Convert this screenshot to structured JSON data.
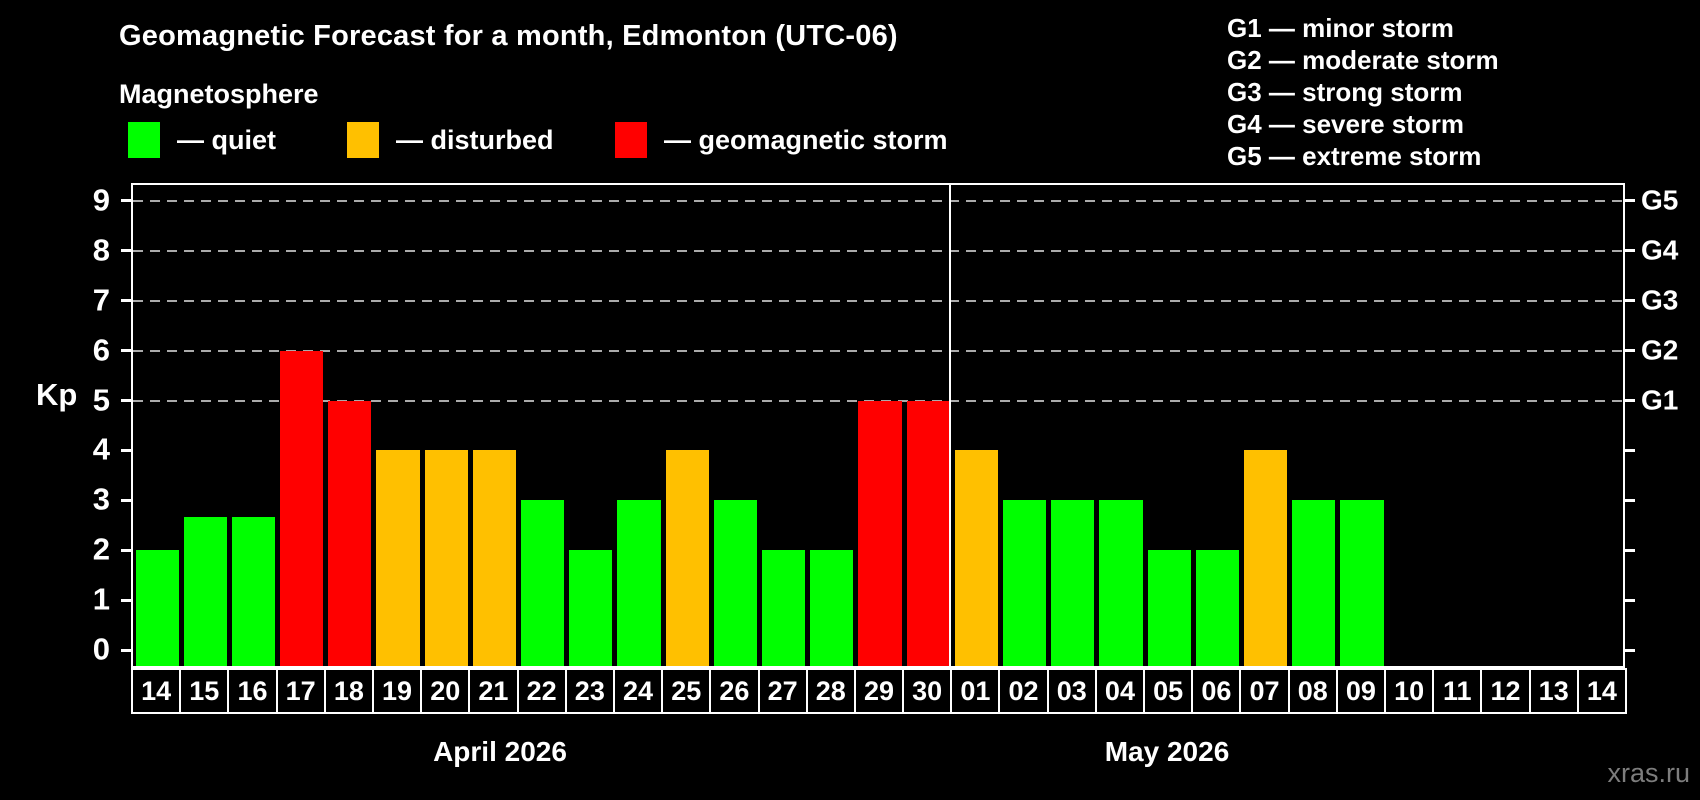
{
  "header": {
    "title": "Geomagnetic Forecast for a month, Edmonton (UTC-06)",
    "subtitle": "Magnetosphere"
  },
  "legend": {
    "items": [
      {
        "name": "quiet",
        "label": "— quiet",
        "color": "#00ff00"
      },
      {
        "name": "disturbed",
        "label": "— disturbed",
        "color": "#ffc000"
      },
      {
        "name": "storm",
        "label": "— geomagnetic storm",
        "color": "#ff0000"
      }
    ]
  },
  "g_legend": {
    "items": [
      "G1 — minor storm",
      "G2 — moderate storm",
      "G3 — strong storm",
      "G4 — severe storm",
      "G5 — extreme storm"
    ]
  },
  "watermark": "xras.ru",
  "chart_data": {
    "type": "bar",
    "title": "Geomagnetic Forecast for a month, Edmonton (UTC-06)",
    "ylabel": "Kp",
    "ylim": [
      0,
      9
    ],
    "yticks": [
      0,
      1,
      2,
      3,
      4,
      5,
      6,
      7,
      8,
      9
    ],
    "grid_levels": [
      5,
      6,
      7,
      8,
      9
    ],
    "grid_style": "dashed",
    "right_axis_labels": [
      {
        "level": 5,
        "label": "G1"
      },
      {
        "level": 6,
        "label": "G2"
      },
      {
        "level": 7,
        "label": "G3"
      },
      {
        "level": 8,
        "label": "G4"
      },
      {
        "level": 9,
        "label": "G5"
      }
    ],
    "status_colors": {
      "quiet": "#00ff00",
      "disturbed": "#ffc000",
      "storm": "#ff0000"
    },
    "months": [
      {
        "label": "April 2026",
        "count": 17
      },
      {
        "label": "May 2026",
        "count": 14
      }
    ],
    "bars": [
      {
        "date": "14",
        "value": 2,
        "status": "quiet"
      },
      {
        "date": "15",
        "value": 2.67,
        "status": "quiet"
      },
      {
        "date": "16",
        "value": 2.67,
        "status": "quiet"
      },
      {
        "date": "17",
        "value": 6,
        "status": "storm"
      },
      {
        "date": "18",
        "value": 5,
        "status": "storm"
      },
      {
        "date": "19",
        "value": 4,
        "status": "disturbed"
      },
      {
        "date": "20",
        "value": 4,
        "status": "disturbed"
      },
      {
        "date": "21",
        "value": 4,
        "status": "disturbed"
      },
      {
        "date": "22",
        "value": 3,
        "status": "quiet"
      },
      {
        "date": "23",
        "value": 2,
        "status": "quiet"
      },
      {
        "date": "24",
        "value": 3,
        "status": "quiet"
      },
      {
        "date": "25",
        "value": 4,
        "status": "disturbed"
      },
      {
        "date": "26",
        "value": 3,
        "status": "quiet"
      },
      {
        "date": "27",
        "value": 2,
        "status": "quiet"
      },
      {
        "date": "28",
        "value": 2,
        "status": "quiet"
      },
      {
        "date": "29",
        "value": 5,
        "status": "storm"
      },
      {
        "date": "30",
        "value": 5,
        "status": "storm"
      },
      {
        "date": "01",
        "value": 4,
        "status": "disturbed"
      },
      {
        "date": "02",
        "value": 3,
        "status": "quiet"
      },
      {
        "date": "03",
        "value": 3,
        "status": "quiet"
      },
      {
        "date": "04",
        "value": 3,
        "status": "quiet"
      },
      {
        "date": "05",
        "value": 2,
        "status": "quiet"
      },
      {
        "date": "06",
        "value": 2,
        "status": "quiet"
      },
      {
        "date": "07",
        "value": 4,
        "status": "disturbed"
      },
      {
        "date": "08",
        "value": 3,
        "status": "quiet"
      },
      {
        "date": "09",
        "value": 3,
        "status": "quiet"
      },
      {
        "date": "10",
        "value": null,
        "status": null
      },
      {
        "date": "11",
        "value": null,
        "status": null
      },
      {
        "date": "12",
        "value": null,
        "status": null
      },
      {
        "date": "13",
        "value": null,
        "status": null
      },
      {
        "date": "14",
        "value": null,
        "status": null
      }
    ]
  }
}
